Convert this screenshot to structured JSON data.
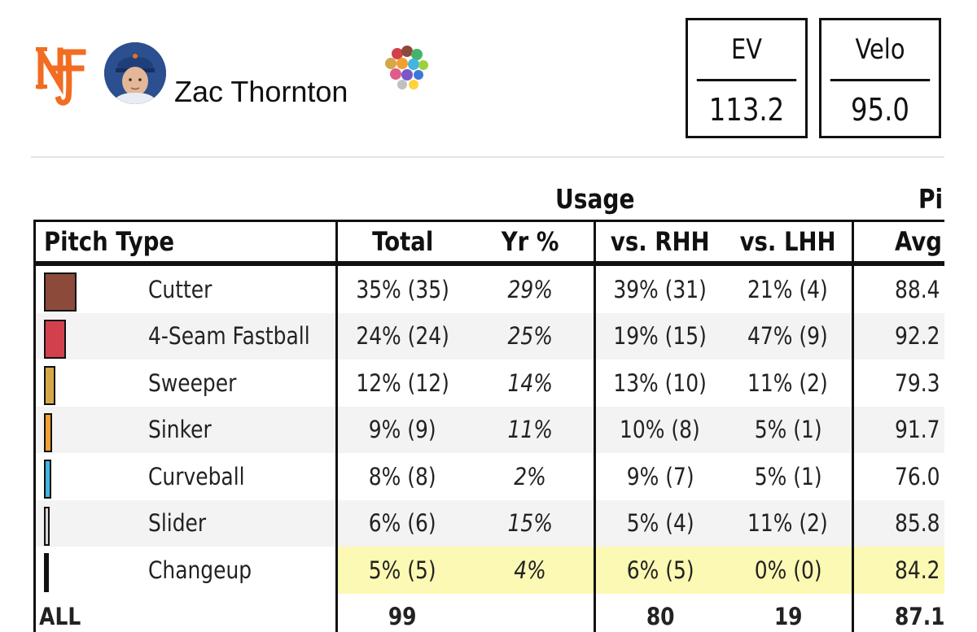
{
  "player": {
    "name": "Zac Thornton",
    "team_logo": "ny-mets-logo-icon",
    "headshot": "player-avatar",
    "colors": {
      "team_orange": "#f26c21",
      "team_blue": "#2b4f8f"
    }
  },
  "stats": [
    {
      "label": "EV",
      "value": "113.2"
    },
    {
      "label": "Velo",
      "value": "95.0"
    }
  ],
  "table": {
    "group_usage": "Usage",
    "group_pitch_truncated": "Pi",
    "columns": {
      "pitch_type": "Pitch Type",
      "total": "Total",
      "yr": "Yr %",
      "vs_rhh": "vs. RHH",
      "vs_lhh": "vs. LHH",
      "avg": "Avg"
    },
    "rows": [
      {
        "pitch": "Cutter",
        "color": "#8b4a3a",
        "swatch_share": 35,
        "total": "35% (35)",
        "yr": "29%",
        "vs_rhh": "39% (31)",
        "vs_lhh": "21% (4)",
        "avg": "88.4",
        "highlight": false
      },
      {
        "pitch": "4-Seam Fastball",
        "color": "#d2404e",
        "swatch_share": 24,
        "total": "24% (24)",
        "yr": "25%",
        "vs_rhh": "19% (15)",
        "vs_lhh": "47% (9)",
        "avg": "92.2",
        "highlight": false
      },
      {
        "pitch": "Sweeper",
        "color": "#d4a84a",
        "swatch_share": 12,
        "total": "12% (12)",
        "yr": "14%",
        "vs_rhh": "13% (10)",
        "vs_lhh": "11% (2)",
        "avg": "79.3",
        "highlight": false
      },
      {
        "pitch": "Sinker",
        "color": "#f0a030",
        "swatch_share": 9,
        "total": "9% (9)",
        "yr": "11%",
        "vs_rhh": "10% (8)",
        "vs_lhh": "5% (1)",
        "avg": "91.7",
        "highlight": false
      },
      {
        "pitch": "Curveball",
        "color": "#45b4e0",
        "swatch_share": 8,
        "total": "8% (8)",
        "yr": "2%",
        "vs_rhh": "9% (7)",
        "vs_lhh": "5% (1)",
        "avg": "76.0",
        "highlight": false
      },
      {
        "pitch": "Slider",
        "color": "#d8d8d8",
        "swatch_share": 6,
        "total": "6% (6)",
        "yr": "15%",
        "vs_rhh": "5% (4)",
        "vs_lhh": "11% (2)",
        "avg": "85.8",
        "highlight": false
      },
      {
        "pitch": "Changeup",
        "color": "#111111",
        "swatch_share": 5,
        "total": "5% (5)",
        "yr": "4%",
        "vs_rhh": "6% (5)",
        "vs_lhh": "0% (0)",
        "avg": "84.2",
        "highlight": true
      }
    ],
    "totals": {
      "label": "ALL",
      "total": "99",
      "yr": "",
      "vs_rhh": "80",
      "vs_lhh": "19",
      "avg": "87.1"
    }
  }
}
